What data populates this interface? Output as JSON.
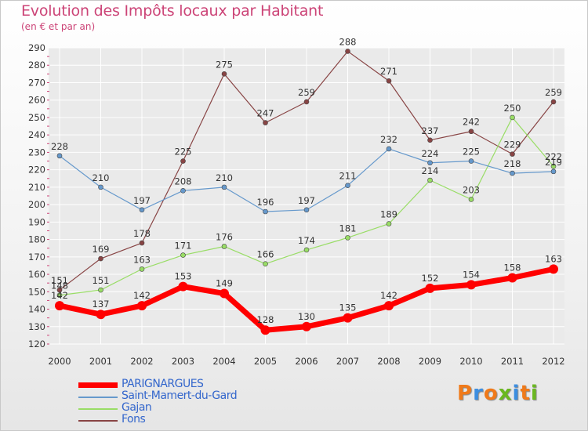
{
  "title": "Evolution des Impôts locaux par Habitant",
  "subtitle": "(en € et par an)",
  "logo": {
    "text": "Proxiti",
    "colors": [
      "#f07a1a",
      "#3d8ee0",
      "#f07a1a",
      "#6ab820",
      "#3d8ee0",
      "#f07a1a",
      "#6ab820"
    ]
  },
  "chart_data": {
    "type": "line",
    "title": "Evolution des Impôts locaux par Habitant",
    "subtitle": "(en € et par an)",
    "xlabel": "",
    "ylabel": "",
    "ylim": [
      120,
      290
    ],
    "yticks": [
      120,
      130,
      140,
      150,
      160,
      170,
      180,
      190,
      200,
      210,
      220,
      230,
      240,
      250,
      260,
      270,
      280,
      290
    ],
    "categories": [
      "2000",
      "2001",
      "2002",
      "2003",
      "2004",
      "2005",
      "2006",
      "2007",
      "2008",
      "2009",
      "2010",
      "2011",
      "2012"
    ],
    "grid": true,
    "legend_position": "bottom-left",
    "series": [
      {
        "name": "PARIGNARGUES",
        "color": "#ff0000",
        "values": [
          142,
          137,
          142,
          153,
          149,
          128,
          130,
          135,
          142,
          152,
          154,
          158,
          163
        ],
        "labels": [
          "142",
          "137",
          "142",
          "153",
          "149",
          "128",
          "130",
          "135",
          "142",
          "152",
          "154",
          "158",
          "163"
        ]
      },
      {
        "name": "Saint-Mamert-du-Gard",
        "color": "#6699cc",
        "values": [
          228,
          210,
          197,
          208,
          210,
          196,
          197,
          211,
          232,
          224,
          225,
          218,
          219
        ],
        "labels": [
          "228",
          "210",
          "197",
          "208",
          "210",
          "196",
          "197",
          "211",
          "232",
          "224",
          "225",
          "218",
          "219"
        ]
      },
      {
        "name": "Gajan",
        "color": "#99dd66",
        "values": [
          148,
          151,
          163,
          171,
          176,
          166,
          174,
          181,
          189,
          214,
          203,
          250,
          222
        ],
        "labels": [
          "148",
          "151",
          "163",
          "171",
          "176",
          "166",
          "174",
          "181",
          "189",
          "214",
          "203",
          "250",
          "222"
        ]
      },
      {
        "name": "Fons",
        "color": "#884444",
        "values": [
          151,
          169,
          178,
          225,
          275,
          247,
          259,
          288,
          271,
          237,
          242,
          229,
          259
        ],
        "labels": [
          "151",
          "169",
          "178",
          "225",
          "275",
          "247",
          "259",
          "288",
          "271",
          "237",
          "242",
          "229",
          "259"
        ]
      }
    ]
  }
}
